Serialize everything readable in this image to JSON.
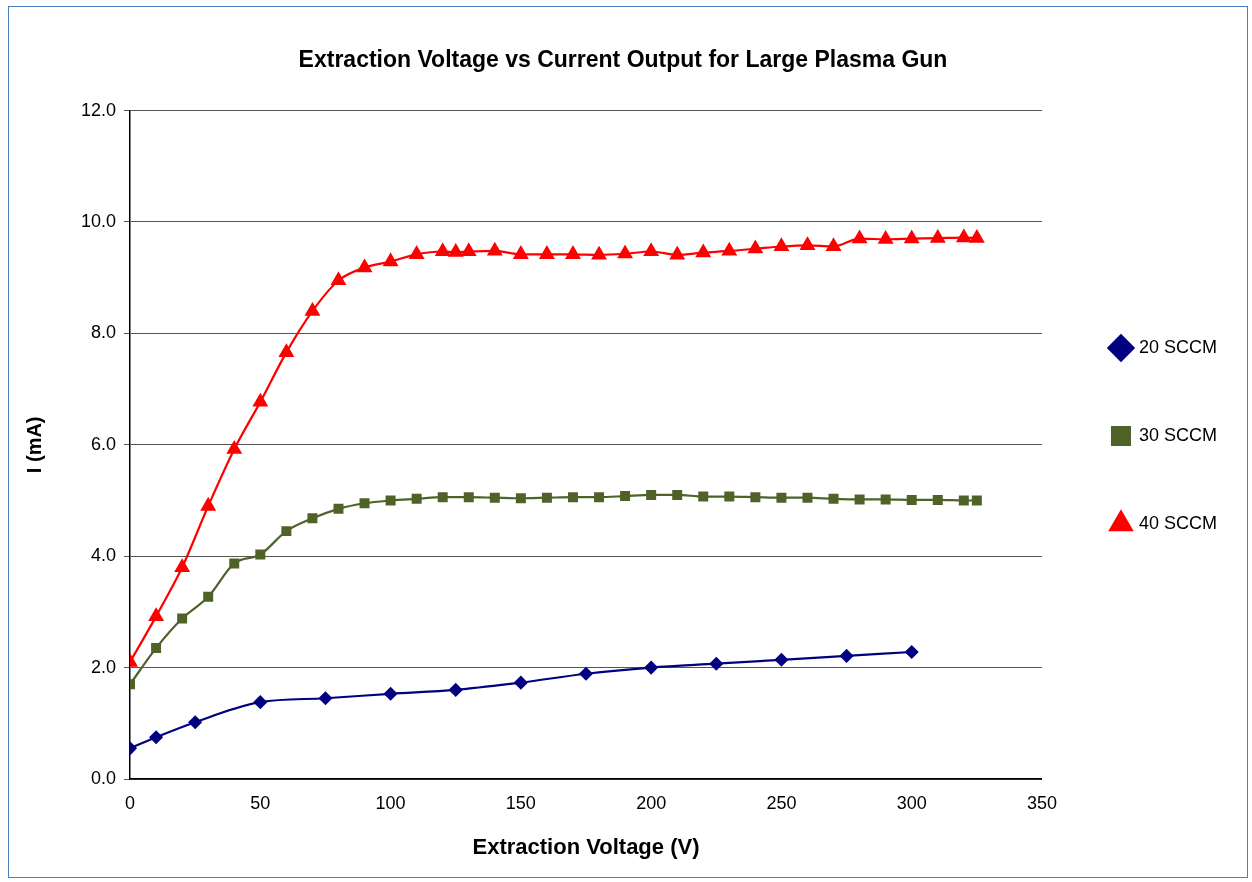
{
  "chart_data": {
    "type": "line",
    "title": "Extraction Voltage vs Current Output for Large Plasma Gun",
    "xlabel": "Extraction Voltage (V)",
    "ylabel": "I (mA)",
    "xlim": [
      0,
      350
    ],
    "xticks": [
      0,
      50,
      100,
      150,
      200,
      250,
      300,
      350
    ],
    "ylim": [
      0,
      12
    ],
    "yticks": [
      {
        "value": 0,
        "label": "0.0"
      },
      {
        "value": 2,
        "label": "2.0"
      },
      {
        "value": 4,
        "label": "4.0"
      },
      {
        "value": 6,
        "label": "6.0"
      },
      {
        "value": 8,
        "label": "8.0"
      },
      {
        "value": 10,
        "label": "10.0"
      },
      {
        "value": 12,
        "label": "12.0"
      }
    ],
    "grid": "y",
    "legend": "right",
    "line_style": "solid",
    "series": [
      {
        "name": "20 SCCM",
        "color": "#000080",
        "marker": "diamond",
        "x": [
          0,
          10,
          25,
          50,
          75,
          100,
          125,
          150,
          175,
          200,
          225,
          250,
          275,
          300
        ],
        "values": [
          0.55,
          0.75,
          1.02,
          1.38,
          1.45,
          1.53,
          1.6,
          1.73,
          1.89,
          2.0,
          2.07,
          2.14,
          2.21,
          2.28
        ]
      },
      {
        "name": "30 SCCM",
        "color": "#4f6228",
        "marker": "square",
        "x": [
          0,
          10,
          20,
          30,
          40,
          50,
          60,
          70,
          80,
          90,
          100,
          110,
          120,
          130,
          140,
          150,
          160,
          170,
          180,
          190,
          200,
          210,
          220,
          230,
          240,
          250,
          260,
          270,
          280,
          290,
          300,
          310,
          320,
          325
        ],
        "values": [
          1.7,
          2.35,
          2.88,
          3.27,
          3.87,
          4.03,
          4.45,
          4.68,
          4.85,
          4.95,
          5.0,
          5.03,
          5.06,
          5.06,
          5.05,
          5.04,
          5.05,
          5.06,
          5.06,
          5.08,
          5.1,
          5.1,
          5.07,
          5.07,
          5.06,
          5.05,
          5.05,
          5.03,
          5.02,
          5.02,
          5.01,
          5.01,
          5.0,
          5.0
        ]
      },
      {
        "name": "40 SCCM",
        "color": "#ff0000",
        "marker": "triangle",
        "x": [
          0,
          10,
          20,
          30,
          40,
          50,
          60,
          70,
          80,
          90,
          100,
          110,
          120,
          125,
          130,
          140,
          150,
          160,
          170,
          180,
          190,
          200,
          210,
          220,
          230,
          240,
          250,
          260,
          270,
          280,
          290,
          300,
          310,
          320,
          325
        ],
        "values": [
          2.1,
          2.92,
          3.8,
          4.9,
          5.92,
          6.77,
          7.66,
          8.4,
          8.95,
          9.18,
          9.29,
          9.42,
          9.47,
          9.46,
          9.47,
          9.48,
          9.42,
          9.42,
          9.42,
          9.41,
          9.43,
          9.47,
          9.41,
          9.45,
          9.48,
          9.52,
          9.56,
          9.58,
          9.56,
          9.7,
          9.69,
          9.7,
          9.71,
          9.72,
          9.71
        ]
      }
    ]
  }
}
